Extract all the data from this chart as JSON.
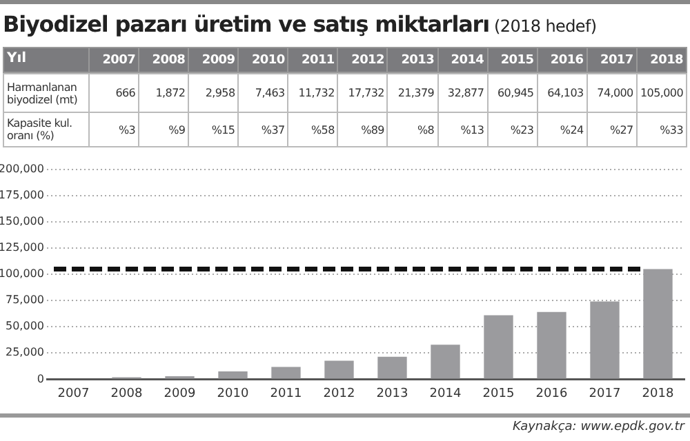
{
  "chart_data": [
    {
      "type": "other",
      "title": "Biyodizel pazarı üretim ve satış miktarları",
      "subtitle": "(2018 hedef)",
      "annotations": [
        "Yıl",
        "Harmanlanan biyodizel (mt)",
        "666",
        "1,872",
        "2,958",
        "7,463",
        "11,732",
        "17,732",
        "21,379",
        "32,877",
        "60,945",
        "64,103",
        "74,000",
        "105,000",
        "Kapasite kul. oranı (%)",
        "%3",
        "%9",
        "%15",
        "%37",
        "%58",
        "%89",
        "%8",
        "%13",
        "%23",
        "%24",
        "%27",
        "%33"
      ]
    },
    {
      "type": "bar",
      "categories": [
        "2007",
        "2008",
        "2009",
        "2010",
        "2011",
        "2012",
        "2013",
        "2014",
        "2015",
        "2016",
        "2017",
        "2018"
      ],
      "series": [
        {
          "color": "#9b9b9e",
          "values": [
            666,
            1872,
            2958,
            7463,
            11732,
            17732,
            21379,
            32877,
            60945,
            64103,
            74000,
            105000
          ]
        }
      ],
      "ylim": [
        0,
        200000
      ],
      "yticks": [
        {
          "value": 0,
          "label": "0"
        },
        {
          "value": 25000,
          "label": "25,000"
        },
        {
          "value": 50000,
          "label": "50,000"
        },
        {
          "value": 75000,
          "label": "75,000"
        },
        {
          "value": 100000,
          "label": "100,000"
        },
        {
          "value": 125000,
          "label": "125,000"
        },
        {
          "value": 150000,
          "label": "150,000"
        },
        {
          "value": 175000,
          "label": "175,000"
        },
        {
          "value": 200000,
          "label": "200,000"
        }
      ],
      "grid": "y",
      "ref_lines": [
        {
          "axis": "y",
          "value": 105000,
          "color": "#111111",
          "line_style": "dashed"
        }
      ],
      "annotations": [
        "Kaynakça: www.epdk.gov.tr"
      ]
    }
  ]
}
